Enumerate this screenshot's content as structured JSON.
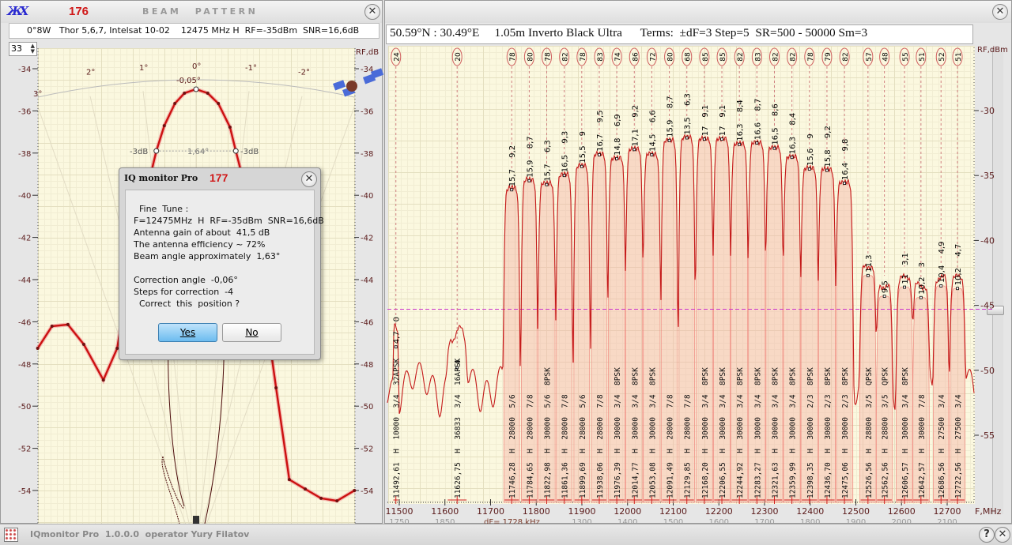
{
  "left_window": {
    "number": "176",
    "title": "BEAM PATTERN",
    "info": "0°8W   Thor 5,6,7, Intelsat 10-02    12475 MHz H  RF=-35dBm  SNR=16,6dB",
    "spin_value": "33",
    "axis_unit": "RF,dB",
    "y_ticks": [
      "-34",
      "-36",
      "-38",
      "-40",
      "-42",
      "-44",
      "-46",
      "-48",
      "-50",
      "-52",
      "-54"
    ],
    "angle_ticks": [
      "3°",
      "2°",
      "1°",
      "0°",
      "-1°",
      "-2°"
    ],
    "peak_label": "-0,05°",
    "beamwidth_label": "1,64°",
    "minus3db_label": "-3dB",
    "curve_color": "#cc1111",
    "beam_points": [
      [
        2.99,
        -47.26
      ],
      [
        2.72,
        -46.21
      ],
      [
        2.42,
        -46.13
      ],
      [
        2.12,
        -47.07
      ],
      [
        1.75,
        -48.76
      ],
      [
        1.49,
        -47.26
      ],
      [
        1.22,
        -43.14
      ],
      [
        1.0,
        -40.52
      ],
      [
        0.75,
        -37.9
      ],
      [
        0.6,
        -36.7
      ],
      [
        0.4,
        -35.65
      ],
      [
        0.22,
        -35.16
      ],
      [
        0.0,
        -34.97
      ],
      [
        -0.22,
        -35.16
      ],
      [
        -0.42,
        -35.65
      ],
      [
        -0.64,
        -36.77
      ],
      [
        -0.75,
        -37.9
      ],
      [
        -0.94,
        -39.77
      ],
      [
        -1.09,
        -41.64
      ],
      [
        -1.24,
        -44.26
      ],
      [
        -1.51,
        -49.13
      ],
      [
        -1.76,
        -53.48
      ],
      [
        -2.06,
        -53.93
      ],
      [
        -2.36,
        -54.37
      ],
      [
        -2.66,
        -54.49
      ],
      [
        -2.99,
        -54.0
      ]
    ]
  },
  "right_window": {
    "header": "50.59°N : 30.49°E     1.05m Inverto Black Ultra      Terms:  ±dF=3 Step=5  SR=500 - 50000 Sm=3",
    "axis_unit": "RF,dBm",
    "x_unit": "F,MHz",
    "df_label": "dF= 1728 kHz",
    "threshold_color": "#cc33cc"
  },
  "dialog": {
    "title": "IQ monitor Pro",
    "number": "177",
    "lines": [
      "  Fine  Tune :",
      "F=12475MHz  H  RF=-35dBm  SNR=16,6dB",
      "Antenna gain of about  41,5 dB",
      "The antenna efficiency ~ 72%",
      "Beam angle approximately  1,63°",
      "",
      "Correction angle  -0,06°",
      "Steps for correction  -4",
      "  Correct  this  position ?"
    ],
    "yes_label": "Yes",
    "no_label": "No"
  },
  "statusbar": {
    "text": "IQmonitor Pro  1.0.0.0  operator Yury Filatov",
    "help_label": "?",
    "close_label": "✕"
  },
  "chart_data": {
    "type": "line",
    "xlabel": "F,MHz",
    "ylabel": "RF,dBm",
    "xlim": [
      11475,
      12760
    ],
    "ylim": [
      -57,
      -27
    ],
    "x_ticks": [
      11500,
      11600,
      11700,
      11800,
      11900,
      12000,
      12100,
      12200,
      12300,
      12400,
      12500,
      12600,
      12700
    ],
    "if_ticks": [
      "1750",
      "1850",
      "",
      "",
      "1300",
      "1400",
      "1500",
      "1600",
      "1700",
      "1800",
      "1900",
      "2000",
      "2100"
    ],
    "y_ticks": [
      -30,
      -35,
      -40,
      -45,
      -50,
      -55
    ],
    "threshold": -45.3,
    "noise_floor": -51,
    "carriers": [
      {
        "freq": "11492,61",
        "f": 11492.61,
        "pol": "H",
        "sr": "10000",
        "fec": "3/4",
        "mod": "32APSK",
        "q": "24",
        "snr": "4,7",
        "snr2": "0",
        "peak": -48.2
      },
      {
        "freq": "11626,75",
        "f": 11626.75,
        "pol": "H",
        "sr": "36833",
        "fec": "3/4",
        "mod": "16APSK",
        "q": "20",
        "snr": "4",
        "snr2": "",
        "peak": -49.8
      },
      {
        "freq": "11746,28",
        "f": 11746.28,
        "pol": "H",
        "sr": "28000",
        "fec": "5/6",
        "mod": "",
        "q": "78",
        "snr": "15,7",
        "snr2": "9,2",
        "peak": -36.1
      },
      {
        "freq": "11784,65",
        "f": 11784.65,
        "pol": "H",
        "sr": "28000",
        "fec": "7/8",
        "mod": "",
        "q": "80",
        "snr": "15,9",
        "snr2": "8,7",
        "peak": -35.4
      },
      {
        "freq": "11822,98",
        "f": 11822.98,
        "pol": "H",
        "sr": "30000",
        "fec": "5/6",
        "mod": "8PSK",
        "q": "78",
        "snr": "15,7",
        "snr2": "6,3",
        "peak": -35.7
      },
      {
        "freq": "11861,36",
        "f": 11861.36,
        "pol": "H",
        "sr": "28000",
        "fec": "7/8",
        "mod": "",
        "q": "82",
        "snr": "16,5",
        "snr2": "9,3",
        "peak": -35.0
      },
      {
        "freq": "11899,69",
        "f": 11899.69,
        "pol": "H",
        "sr": "28000",
        "fec": "5/6",
        "mod": "",
        "q": "78",
        "snr": "15,5",
        "snr2": "9",
        "peak": -34.3
      },
      {
        "freq": "11938,06",
        "f": 11938.06,
        "pol": "H",
        "sr": "28000",
        "fec": "7/8",
        "mod": "",
        "q": "83",
        "snr": "16,7",
        "snr2": "9,5",
        "peak": -33.4
      },
      {
        "freq": "11976,39",
        "f": 11976.39,
        "pol": "H",
        "sr": "30000",
        "fec": "3/4",
        "mod": "8PSK",
        "q": "74",
        "snr": "14,8",
        "snr2": "6,9",
        "peak": -33.7
      },
      {
        "freq": "12014,77",
        "f": 12014.77,
        "pol": "H",
        "sr": "30000",
        "fec": "3/4",
        "mod": "8PSK",
        "q": "86",
        "snr": "17,1",
        "snr2": "9,2",
        "peak": -33.0
      },
      {
        "freq": "12053,08",
        "f": 12053.08,
        "pol": "H",
        "sr": "30000",
        "fec": "3/4",
        "mod": "8PSK",
        "q": "72",
        "snr": "14,5",
        "snr2": "6,6",
        "peak": -33.4
      },
      {
        "freq": "12091,49",
        "f": 12091.49,
        "pol": "H",
        "sr": "28000",
        "fec": "7/8",
        "mod": "",
        "q": "80",
        "snr": "15,9",
        "snr2": "8,7",
        "peak": -32.3
      },
      {
        "freq": "12129,85",
        "f": 12129.85,
        "pol": "H",
        "sr": "28000",
        "fec": "7/8",
        "mod": "",
        "q": "68",
        "snr": "13,5",
        "snr2": "6,3",
        "peak": -32.1
      },
      {
        "freq": "12168,20",
        "f": 12168.2,
        "pol": "H",
        "sr": "30000",
        "fec": "3/4",
        "mod": "8PSK",
        "q": "85",
        "snr": "17",
        "snr2": "9,1",
        "peak": -32.2
      },
      {
        "freq": "12206,55",
        "f": 12206.55,
        "pol": "H",
        "sr": "30000",
        "fec": "3/4",
        "mod": "8PSK",
        "q": "85",
        "snr": "17",
        "snr2": "9,1",
        "peak": -32.2
      },
      {
        "freq": "12244,92",
        "f": 12244.92,
        "pol": "H",
        "sr": "30000",
        "fec": "3/4",
        "mod": "8PSK",
        "q": "82",
        "snr": "16,3",
        "snr2": "8,4",
        "peak": -32.6
      },
      {
        "freq": "12283,27",
        "f": 12283.27,
        "pol": "H",
        "sr": "30000",
        "fec": "3/4",
        "mod": "8PSK",
        "q": "83",
        "snr": "16,6",
        "snr2": "8,7",
        "peak": -32.5
      },
      {
        "freq": "12321,63",
        "f": 12321.63,
        "pol": "H",
        "sr": "30000",
        "fec": "3/4",
        "mod": "8PSK",
        "q": "82",
        "snr": "16,5",
        "snr2": "8,6",
        "peak": -32.9
      },
      {
        "freq": "12359,99",
        "f": 12359.99,
        "pol": "H",
        "sr": "30000",
        "fec": "3/4",
        "mod": "8PSK",
        "q": "82",
        "snr": "16,3",
        "snr2": "8,4",
        "peak": -33.6
      },
      {
        "freq": "12398,35",
        "f": 12398.35,
        "pol": "H",
        "sr": "30000",
        "fec": "2/3",
        "mod": "8PSK",
        "q": "78",
        "snr": "15,6",
        "snr2": "9",
        "peak": -34.5
      },
      {
        "freq": "12436,70",
        "f": 12436.7,
        "pol": "H",
        "sr": "30000",
        "fec": "2/3",
        "mod": "8PSK",
        "q": "79",
        "snr": "15,8",
        "snr2": "9,2",
        "peak": -34.6
      },
      {
        "freq": "12475,06",
        "f": 12475.06,
        "pol": "H",
        "sr": "30000",
        "fec": "2/3",
        "mod": "8PSK",
        "q": "82",
        "snr": "16,4",
        "snr2": "9,8",
        "peak": -35.6
      },
      {
        "freq": "12526,56",
        "f": 12526.56,
        "pol": "H",
        "sr": "28800",
        "fec": "3/5",
        "mod": "QPSK",
        "q": "57",
        "snr": "11,3",
        "snr2": "",
        "peak": -42.7
      },
      {
        "freq": "12562,56",
        "f": 12562.56,
        "pol": "H",
        "sr": "28800",
        "fec": "3/5",
        "mod": "QPSK",
        "q": "48",
        "snr": "9,5",
        "snr2": "",
        "peak": -44.3
      },
      {
        "freq": "12606,57",
        "f": 12606.57,
        "pol": "H",
        "sr": "30000",
        "fec": "3/4",
        "mod": "8PSK",
        "q": "55",
        "snr": "11",
        "snr2": "3,1",
        "peak": -43.6
      },
      {
        "freq": "12642,57",
        "f": 12642.57,
        "pol": "H",
        "sr": "30000",
        "fec": "7/8",
        "mod": "",
        "q": "51",
        "snr": "10,2",
        "snr2": "3",
        "peak": -44.4
      },
      {
        "freq": "12686,56",
        "f": 12686.56,
        "pol": "H",
        "sr": "27500",
        "fec": "3/4",
        "mod": "",
        "q": "52",
        "snr": "10,4",
        "snr2": "4,9",
        "peak": -43.5
      },
      {
        "freq": "12722,56",
        "f": 12722.56,
        "pol": "H",
        "sr": "27500",
        "fec": "3/4",
        "mod": "",
        "q": "51",
        "snr": "10,2",
        "snr2": "4,7",
        "peak": -43.7
      }
    ]
  }
}
